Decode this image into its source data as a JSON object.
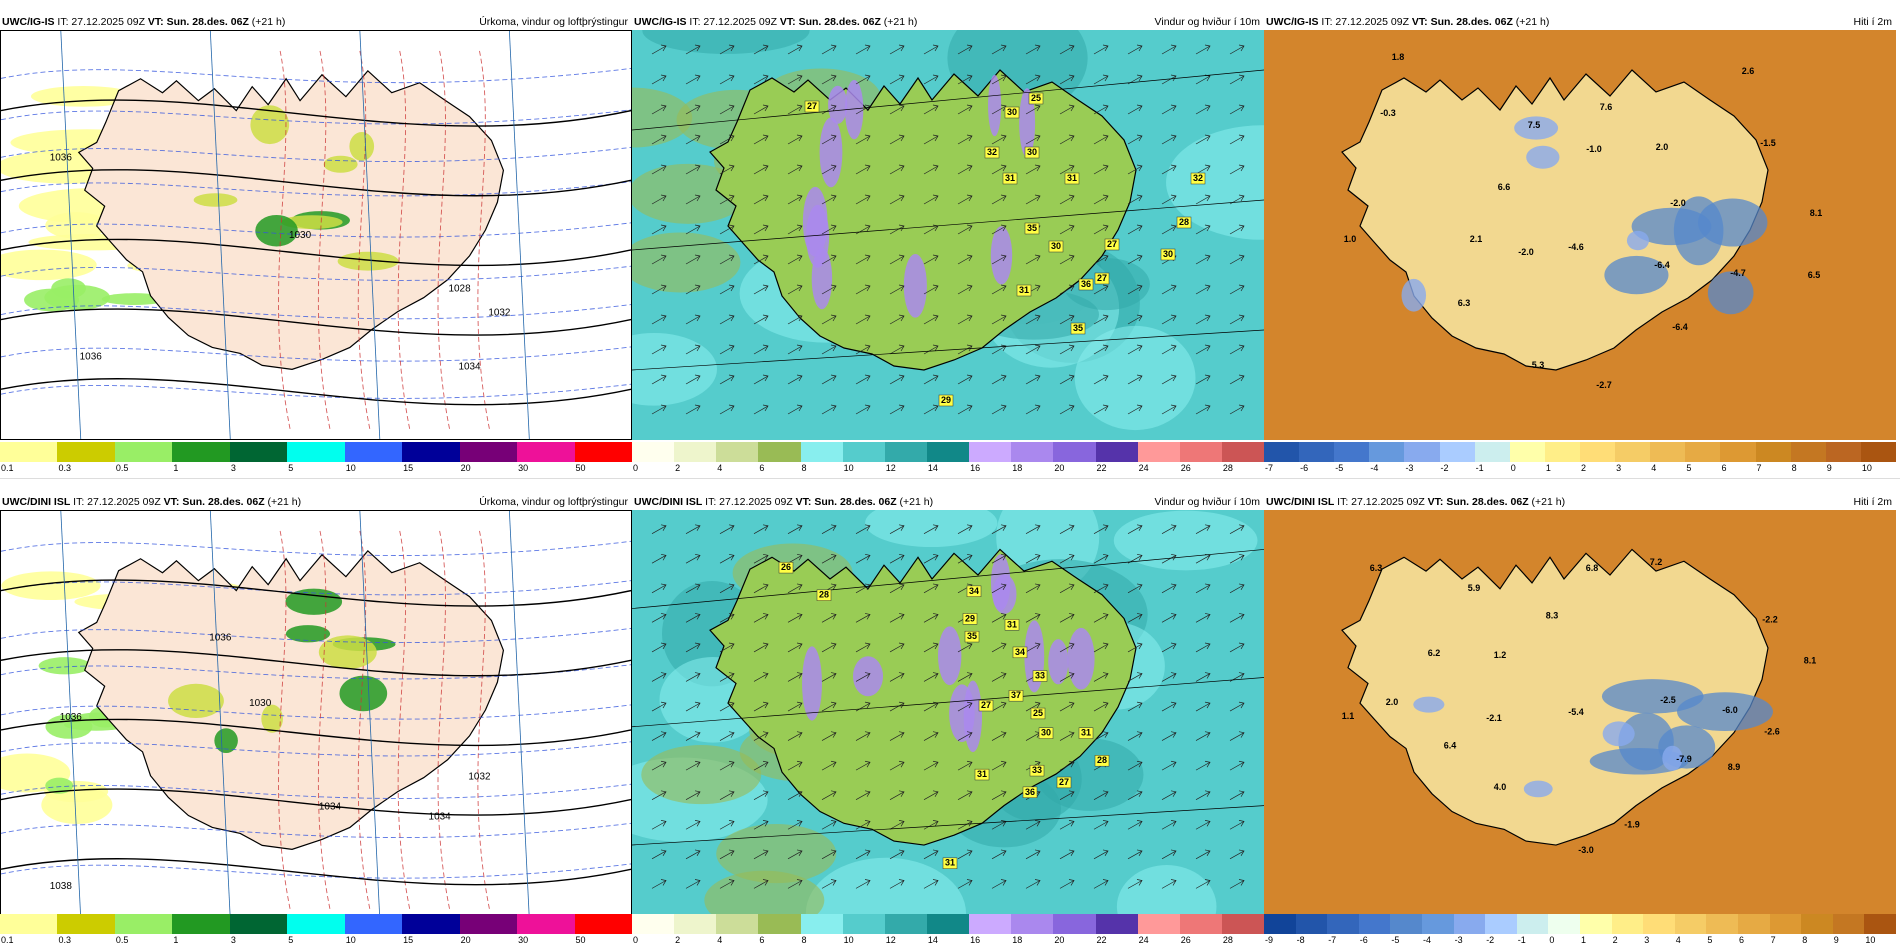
{
  "rows": [
    {
      "model": "UWC/IG-IS",
      "panels": [
        {
          "kind": "precip",
          "model": "UWC/IG-IS",
          "it": " IT: 27.12.2025 09Z ",
          "vt": "VT: Sun. 28.des. 06Z",
          "lead": " (+21 h)",
          "title": "Úrkoma, vindur og loftþrýstingur",
          "ticks": [
            "0.1",
            "0.3",
            "0.5",
            "1",
            "3",
            "5",
            "10",
            "15",
            "20",
            "30",
            "50"
          ],
          "labels": [
            {
              "t": "1036"
            },
            {
              "t": "1028"
            },
            {
              "t": "1032"
            },
            {
              "t": "1034"
            },
            {
              "t": "1036"
            },
            {
              "t": "1030"
            }
          ]
        },
        {
          "kind": "wind",
          "model": "UWC/IG-IS",
          "it": " IT: 27.12.2025 09Z ",
          "vt": "VT: Sun. 28.des. 06Z",
          "lead": " (+21 h)",
          "title": "Vindur og hviður í 10m",
          "ticks": [
            "0",
            "2",
            "4",
            "6",
            "8",
            "10",
            "12",
            "14",
            "16",
            "18",
            "20",
            "22",
            "24",
            "26",
            "28"
          ],
          "labels": [
            {
              "t": "27"
            },
            {
              "t": "25"
            },
            {
              "t": "30"
            },
            {
              "t": "32"
            },
            {
              "t": "30"
            },
            {
              "t": "31"
            },
            {
              "t": "31"
            },
            {
              "t": "35"
            },
            {
              "t": "30"
            },
            {
              "t": "27"
            },
            {
              "t": "31"
            },
            {
              "t": "36"
            },
            {
              "t": "35"
            },
            {
              "t": "27"
            },
            {
              "t": "30"
            },
            {
              "t": "28"
            },
            {
              "t": "32"
            },
            {
              "t": "29"
            }
          ]
        },
        {
          "kind": "temp",
          "model": "UWC/IG-IS",
          "it": " IT: 27.12.2025 09Z ",
          "vt": "VT: Sun. 28.des. 06Z",
          "lead": " (+21 h)",
          "title": "Hiti í 2m",
          "ticks": [
            "-7",
            "-6",
            "-5",
            "-4",
            "-3",
            "-2",
            "-1",
            "0",
            "1",
            "2",
            "3",
            "4",
            "5",
            "6",
            "7",
            "8",
            "9",
            "10"
          ],
          "labels": [
            {
              "t": "1.8"
            },
            {
              "t": "2.6"
            },
            {
              "t": "-0.3"
            },
            {
              "t": "7.5"
            },
            {
              "t": "7.6"
            },
            {
              "t": "-1.0"
            },
            {
              "t": "2.0"
            },
            {
              "t": "-1.5"
            },
            {
              "t": "6.6"
            },
            {
              "t": "-2.0"
            },
            {
              "t": "8.1"
            },
            {
              "t": "1.0"
            },
            {
              "t": "2.1"
            },
            {
              "t": "-2.0"
            },
            {
              "t": "-4.6"
            },
            {
              "t": "-6.4"
            },
            {
              "t": "-4.7"
            },
            {
              "t": "6.5"
            },
            {
              "t": "6.3"
            },
            {
              "t": "-6.4"
            },
            {
              "t": "5.3"
            },
            {
              "t": "-2.7"
            }
          ]
        }
      ]
    },
    {
      "model": "UWC/DINI ISL",
      "panels": [
        {
          "kind": "precip",
          "model": "UWC/DINI ISL",
          "it": " IT: 27.12.2025 09Z ",
          "vt": "VT: Sun. 28.des. 06Z",
          "lead": " (+21 h)",
          "title": "Úrkoma, vindur og loftþrýstingur",
          "ticks": [
            "0.1",
            "0.3",
            "0.5",
            "1",
            "3",
            "5",
            "10",
            "15",
            "20",
            "30",
            "50"
          ],
          "labels": [
            {
              "t": "1036"
            },
            {
              "t": "1034"
            },
            {
              "t": "1030"
            },
            {
              "t": "1032"
            },
            {
              "t": "1034"
            },
            {
              "t": "1036"
            },
            {
              "t": "1038"
            }
          ]
        },
        {
          "kind": "wind",
          "model": "UWC/DINI ISL",
          "it": " IT: 27.12.2025 09Z ",
          "vt": "VT: Sun. 28.des. 06Z",
          "lead": " (+21 h)",
          "title": "Vindur og hviður í 10m",
          "ticks": [
            "0",
            "2",
            "4",
            "6",
            "8",
            "10",
            "12",
            "14",
            "16",
            "18",
            "20",
            "22",
            "24",
            "26",
            "28"
          ],
          "labels": [
            {
              "t": "26"
            },
            {
              "t": "28"
            },
            {
              "t": "34"
            },
            {
              "t": "29"
            },
            {
              "t": "31"
            },
            {
              "t": "35"
            },
            {
              "t": "34"
            },
            {
              "t": "33"
            },
            {
              "t": "37"
            },
            {
              "t": "27"
            },
            {
              "t": "25"
            },
            {
              "t": "30"
            },
            {
              "t": "31"
            },
            {
              "t": "28"
            },
            {
              "t": "27"
            },
            {
              "t": "31"
            },
            {
              "t": "33"
            },
            {
              "t": "36"
            },
            {
              "t": "31"
            }
          ]
        },
        {
          "kind": "temp",
          "model": "UWC/DINI ISL",
          "it": " IT: 27.12.2025 09Z ",
          "vt": "VT: Sun. 28.des. 06Z",
          "lead": " (+21 h)",
          "title": "Hiti í 2m",
          "ticks": [
            "-9",
            "-8",
            "-7",
            "-6",
            "-5",
            "-4",
            "-3",
            "-2",
            "-1",
            "0",
            "1",
            "2",
            "3",
            "4",
            "5",
            "6",
            "7",
            "8",
            "9",
            "10"
          ],
          "labels": [
            {
              "t": "6.3"
            },
            {
              "t": "5.9"
            },
            {
              "t": "6.8"
            },
            {
              "t": "7.2"
            },
            {
              "t": "8.3"
            },
            {
              "t": "6.2"
            },
            {
              "t": "1.2"
            },
            {
              "t": "-2.2"
            },
            {
              "t": "8.1"
            },
            {
              "t": "2.0"
            },
            {
              "t": "-2.5"
            },
            {
              "t": "1.1"
            },
            {
              "t": "-2.1"
            },
            {
              "t": "-5.4"
            },
            {
              "t": "-6.0"
            },
            {
              "t": "-2.6"
            },
            {
              "t": "6.4"
            },
            {
              "t": "-7.9"
            },
            {
              "t": "8.9"
            },
            {
              "t": "4.0"
            },
            {
              "t": "-1.9"
            },
            {
              "t": "-3.0"
            }
          ]
        }
      ]
    }
  ],
  "colorbars": {
    "precip": [
      "#ffff99",
      "#cccc00",
      "#99ee66",
      "#229922",
      "#006633",
      "#00ffee",
      "#3366ff",
      "#000099",
      "#770077",
      "#ee1199",
      "#ff0000"
    ],
    "wind": [
      "#ffffee",
      "#eef5cc",
      "#ccdd99",
      "#99bb55",
      "#88eeee",
      "#55cccc",
      "#33aaaa",
      "#118888",
      "#ccaaff",
      "#aa88ee",
      "#8866dd",
      "#5533aa",
      "#ff9999",
      "#ee7777",
      "#cc5555"
    ],
    "temp_row1": [
      "#2255aa",
      "#3366bb",
      "#4477cc",
      "#6699dd",
      "#88aaee",
      "#aaccff",
      "#cceeee",
      "#ffffaa",
      "#ffee88",
      "#ffdd77",
      "#f5cc66",
      "#eebb55",
      "#e6aa44",
      "#dd9933",
      "#cc8822",
      "#c47722",
      "#bb6622",
      "#aa5511"
    ],
    "temp_row2": [
      "#114499",
      "#2255aa",
      "#3366bb",
      "#4477cc",
      "#5588cc",
      "#6699dd",
      "#88aaee",
      "#aaccff",
      "#cceeee",
      "#eeffee",
      "#ffffaa",
      "#ffee88",
      "#ffdd77",
      "#f5cc66",
      "#eebb55",
      "#e6aa44",
      "#dd9933",
      "#cc8822",
      "#c47722",
      "#aa5511"
    ],
    "map_land": {
      "precip": "#fbe6d6",
      "wind": "#99cc55",
      "temp": "#f2d890"
    },
    "map_sea": {
      "precip": "#ffffff",
      "wind": "#55cccc",
      "temp": "#d88a30"
    }
  }
}
